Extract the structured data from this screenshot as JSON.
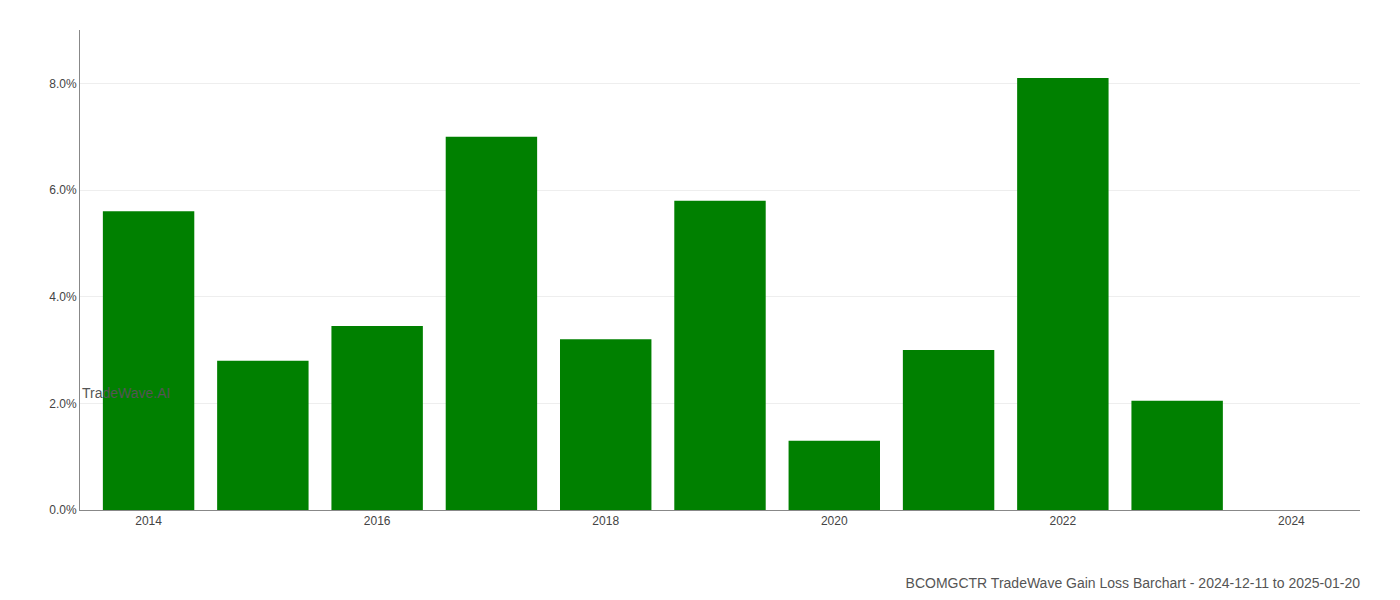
{
  "chart_data": {
    "type": "bar",
    "title": "BCOMGCTR TradeWave Gain Loss Barchart - 2024-12-11 to 2025-01-20",
    "annotations": [
      "TradeWave.AI"
    ],
    "x": [
      2014,
      2015,
      2016,
      2017,
      2018,
      2019,
      2020,
      2021,
      2022,
      2023
    ],
    "values": [
      0.056,
      0.028,
      0.0345,
      0.07,
      0.032,
      0.058,
      0.013,
      0.03,
      0.081,
      0.0205
    ],
    "color": "#008000",
    "xlim": [
      2013.4,
      2024.6
    ],
    "xticks": [
      2014,
      2016,
      2018,
      2020,
      2022,
      2024
    ],
    "ylim": [
      0,
      0.09
    ],
    "yticks": [
      {
        "value": 0.0,
        "label": "0.0%"
      },
      {
        "value": 0.02,
        "label": "2.0%"
      },
      {
        "value": 0.04,
        "label": "4.0%"
      },
      {
        "value": 0.06,
        "label": "6.0%"
      },
      {
        "value": 0.08,
        "label": "8.0%"
      }
    ],
    "grid": true
  }
}
